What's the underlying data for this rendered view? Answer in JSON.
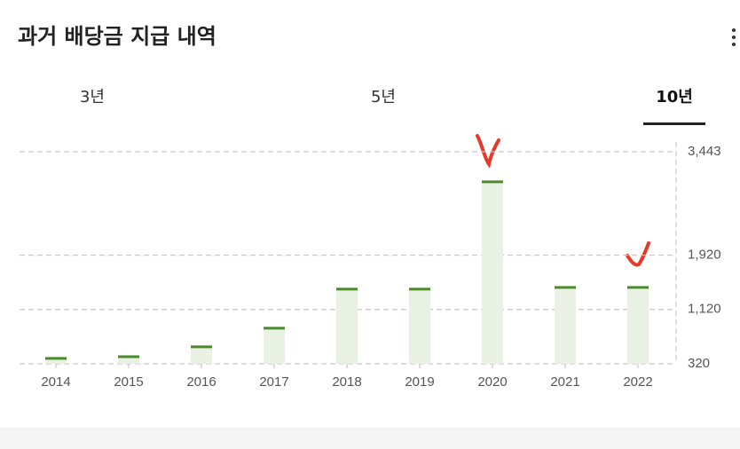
{
  "tabs": [
    "3년",
    "5년",
    "10년"
  ],
  "chart_data": {
    "type": "bar",
    "title": "과거 배당금 지급 내역",
    "categories": [
      "2014",
      "2015",
      "2016",
      "2017",
      "2018",
      "2019",
      "2020",
      "2021",
      "2022"
    ],
    "values": [
      400,
      425,
      570,
      845,
      1420,
      1420,
      3000,
      1445,
      1445
    ],
    "color": "#4a8a2a",
    "ylim": [
      320,
      3443
    ],
    "yticks": [
      320,
      {
        "value": 1120,
        "label": "1,120"
      },
      {
        "value": 1920,
        "label": "1,920"
      },
      {
        "value": 3443,
        "label": "3,443"
      }
    ],
    "grid": true
  }
}
